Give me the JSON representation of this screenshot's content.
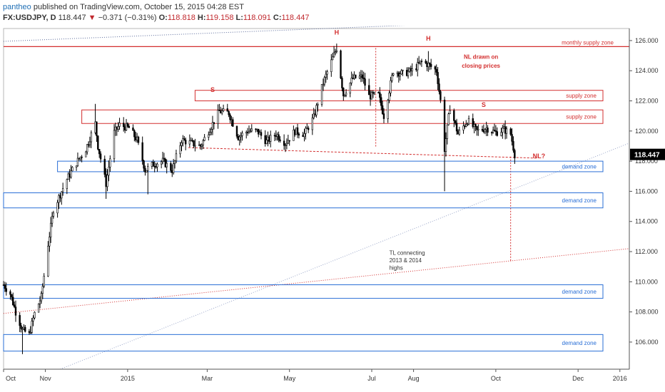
{
  "header": {
    "author": "pantheo",
    "published": "published on TradingView.com, October 15, 2015 04:28 EST",
    "symbol": "FX:USDJPY, D",
    "last": "118.447",
    "change_arrow": "▼",
    "change": "−0.371 (−0.31%)",
    "o_label": "O:",
    "o_value": "118.818",
    "h_label": "H:",
    "h_value": "119.158",
    "l_label": "L:",
    "l_value": "118.091",
    "c_label": "C:",
    "c_value": "118.447"
  },
  "colors": {
    "up": "#000000",
    "down": "#000000",
    "zone_supply": "#d32f2f",
    "zone_demand": "#2a6fd6",
    "neckline": "#d32f2f",
    "neg": "#c0282d"
  },
  "chart_data": {
    "type": "candlestick",
    "ylim": [
      104.2,
      126.8
    ],
    "yticks": [
      "126.000",
      "124.000",
      "122.000",
      "120.000",
      "118.000",
      "116.000",
      "114.000",
      "112.000",
      "110.000",
      "108.000",
      "106.000"
    ],
    "ytick_values": [
      126,
      124,
      122,
      120,
      118,
      116,
      114,
      112,
      110,
      108,
      106
    ],
    "xlim": [
      "2014-10-01",
      "2016-01-08"
    ],
    "xticks": [
      "Oct",
      "Nov",
      "2015",
      "Mar",
      "May",
      "Jul",
      "Aug",
      "Oct",
      "Dec",
      "2016"
    ],
    "xtick_dates": [
      "2014-10-01",
      "2014-11-01",
      "2015-01-01",
      "2015-03-01",
      "2015-05-01",
      "2015-07-01",
      "2015-08-01",
      "2015-10-01",
      "2015-12-01",
      "2016-01-01"
    ],
    "last_price": "118.447",
    "last_price_value": 118.447,
    "price_path": [
      [
        "2014-10-01",
        109.8
      ],
      [
        "2014-10-06",
        109.2
      ],
      [
        "2014-10-10",
        108.0
      ],
      [
        "2014-10-15",
        106.8
      ],
      [
        "2014-10-20",
        106.5
      ],
      [
        "2014-10-24",
        107.9
      ],
      [
        "2014-10-29",
        109.0
      ],
      [
        "2014-11-03",
        112.5
      ],
      [
        "2014-11-07",
        114.8
      ],
      [
        "2014-11-12",
        115.8
      ],
      [
        "2014-11-17",
        116.8
      ],
      [
        "2014-11-24",
        117.9
      ],
      [
        "2014-12-01",
        118.8
      ],
      [
        "2014-12-08",
        120.5
      ],
      [
        "2014-12-10",
        119.0
      ],
      [
        "2014-12-16",
        116.5
      ],
      [
        "2014-12-22",
        119.9
      ],
      [
        "2014-12-26",
        120.4
      ],
      [
        "2015-01-02",
        120.2
      ],
      [
        "2015-01-08",
        119.4
      ],
      [
        "2015-01-14",
        117.4
      ],
      [
        "2015-01-20",
        117.8
      ],
      [
        "2015-01-27",
        118.0
      ],
      [
        "2015-02-03",
        117.4
      ],
      [
        "2015-02-10",
        119.4
      ],
      [
        "2015-02-17",
        119.2
      ],
      [
        "2015-02-24",
        119.0
      ],
      [
        "2015-03-02",
        120.0
      ],
      [
        "2015-03-10",
        121.3
      ],
      [
        "2015-03-17",
        121.2
      ],
      [
        "2015-03-24",
        119.6
      ],
      [
        "2015-03-31",
        120.0
      ],
      [
        "2015-04-07",
        120.0
      ],
      [
        "2015-04-14",
        119.3
      ],
      [
        "2015-04-21",
        119.8
      ],
      [
        "2015-04-28",
        119.2
      ],
      [
        "2015-05-05",
        120.0
      ],
      [
        "2015-05-12",
        119.8
      ],
      [
        "2015-05-19",
        120.9
      ],
      [
        "2015-05-26",
        123.2
      ],
      [
        "2015-06-01",
        124.6
      ],
      [
        "2015-06-05",
        125.5
      ],
      [
        "2015-06-10",
        122.4
      ],
      [
        "2015-06-17",
        123.5
      ],
      [
        "2015-06-24",
        123.6
      ],
      [
        "2015-06-29",
        122.3
      ],
      [
        "2015-07-06",
        122.4
      ],
      [
        "2015-07-10",
        121.0
      ],
      [
        "2015-07-17",
        124.0
      ],
      [
        "2015-07-24",
        123.8
      ],
      [
        "2015-07-31",
        124.0
      ],
      [
        "2015-08-07",
        124.6
      ],
      [
        "2015-08-12",
        124.4
      ],
      [
        "2015-08-18",
        124.0
      ],
      [
        "2015-08-21",
        122.0
      ],
      [
        "2015-08-24",
        118.8
      ],
      [
        "2015-08-28",
        121.6
      ],
      [
        "2015-09-03",
        119.8
      ],
      [
        "2015-09-10",
        120.7
      ],
      [
        "2015-09-17",
        120.0
      ],
      [
        "2015-09-24",
        120.2
      ],
      [
        "2015-10-01",
        119.9
      ],
      [
        "2015-10-07",
        120.1
      ],
      [
        "2015-10-12",
        119.8
      ],
      [
        "2015-10-15",
        118.447
      ]
    ],
    "wick_extremes": [
      [
        "2014-10-15",
        105.2,
        "low"
      ],
      [
        "2014-12-08",
        121.8,
        "high"
      ],
      [
        "2014-12-16",
        115.5,
        "low"
      ],
      [
        "2015-01-16",
        115.8,
        "low"
      ],
      [
        "2015-06-05",
        125.8,
        "high"
      ],
      [
        "2015-08-12",
        125.3,
        "high"
      ],
      [
        "2015-08-24",
        116.0,
        "low"
      ]
    ],
    "zones": [
      {
        "label": "monthly supply zone",
        "kind": "supply",
        "y1": 125.6,
        "y2": 125.6,
        "x_start": "2014-10-01",
        "line": true
      },
      {
        "label": "supply zone",
        "kind": "supply",
        "y1": 122.7,
        "y2": 122.0,
        "x_start": "2015-02-20"
      },
      {
        "label": "supply zone",
        "kind": "supply",
        "y1": 121.4,
        "y2": 120.5,
        "x_start": "2014-11-28"
      },
      {
        "label": "demand zone",
        "kind": "demand",
        "y1": 118.0,
        "y2": 117.3,
        "x_start": "2014-11-10"
      },
      {
        "label": "demand zone",
        "kind": "demand",
        "y1": 115.9,
        "y2": 114.9,
        "x_start": "2014-10-01"
      },
      {
        "label": "demand zone",
        "kind": "demand",
        "y1": 109.8,
        "y2": 108.9,
        "x_start": "2014-10-01"
      },
      {
        "label": "demand zone",
        "kind": "demand",
        "y1": 106.5,
        "y2": 105.4,
        "x_start": "2014-10-01"
      }
    ],
    "annotations": [
      {
        "text": "S",
        "date": "2015-03-05",
        "price": 122.6
      },
      {
        "text": "H",
        "date": "2015-06-05",
        "price": 126.4
      },
      {
        "text": "H",
        "date": "2015-08-12",
        "price": 126.0
      },
      {
        "text": "S",
        "date": "2015-09-22",
        "price": 121.6
      },
      {
        "text": "NL drawn on",
        "date": "2015-09-20",
        "price": 124.8
      },
      {
        "text": "closing prices",
        "date": "2015-09-20",
        "price": 124.2
      },
      {
        "text": "NL?",
        "date": "2015-11-02",
        "price": 118.2
      },
      {
        "text": "TL connecting",
        "date": "2015-07-14",
        "price": 111.8
      },
      {
        "text": "2013 & 2014",
        "date": "2015-07-14",
        "price": 111.3
      },
      {
        "text": "highs",
        "date": "2015-07-14",
        "price": 110.8
      }
    ]
  }
}
